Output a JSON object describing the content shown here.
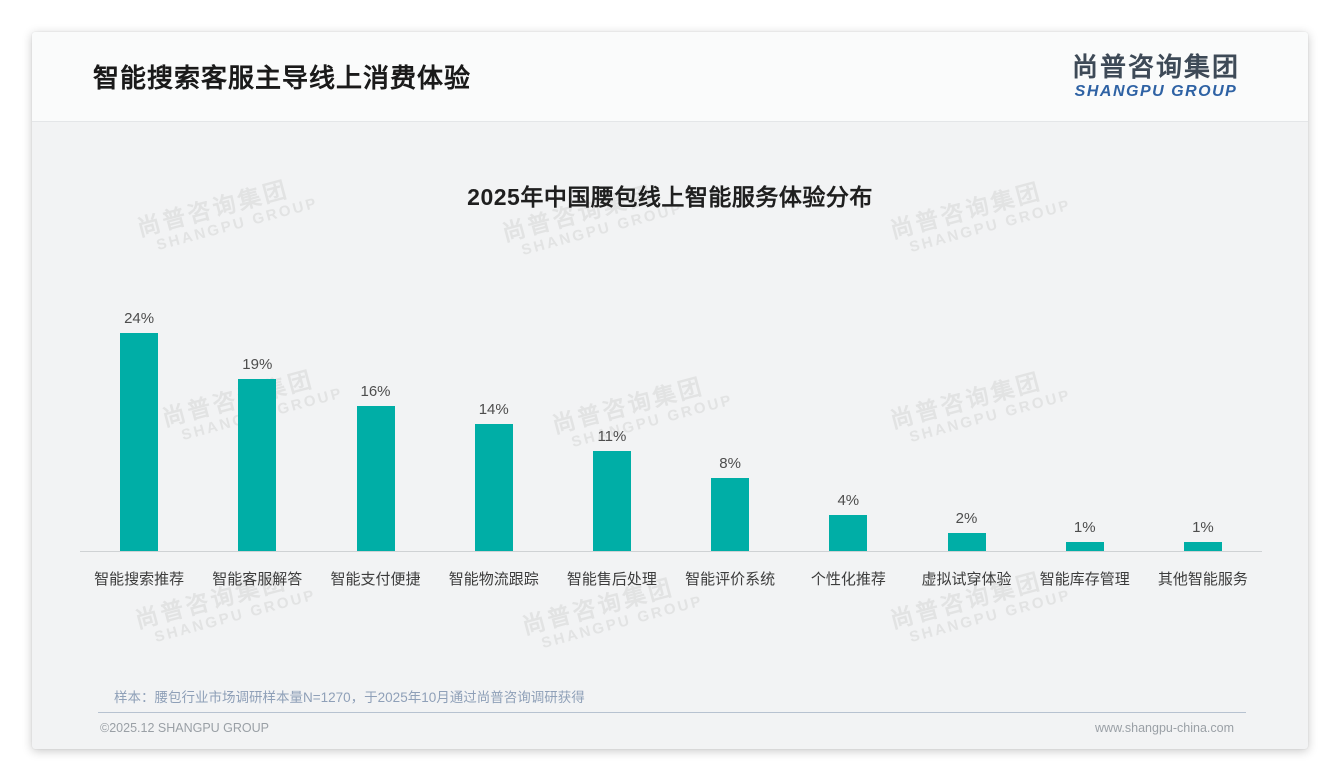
{
  "page": {
    "title": "智能搜索客服主导线上消费体验",
    "logo": {
      "cn": "尚普咨询集团",
      "en": "SHANGPU GROUP"
    },
    "watermark": {
      "cn": "尚普咨询集团",
      "en": "SHANGPU GROUP"
    },
    "sample_note": "样本：腰包行业市场调研样本量N=1270，于2025年10月通过尚普咨询调研获得",
    "footer_left": "©2025.12 SHANGPU GROUP",
    "footer_right": "www.shangpu-china.com"
  },
  "chart_data": {
    "type": "bar",
    "title": "2025年中国腰包线上智能服务体验分布",
    "categories": [
      "智能搜索推荐",
      "智能客服解答",
      "智能支付便捷",
      "智能物流跟踪",
      "智能售后处理",
      "智能评价系统",
      "个性化推荐",
      "虚拟试穿体验",
      "智能库存管理",
      "其他智能服务"
    ],
    "values": [
      24,
      19,
      16,
      14,
      11,
      8,
      4,
      2,
      1,
      1
    ],
    "unit": "%",
    "value_labels": [
      "24%",
      "19%",
      "16%",
      "14%",
      "11%",
      "8%",
      "4%",
      "2%",
      "1%",
      "1%"
    ],
    "bar_color": "#00aea6",
    "ylim": [
      0,
      26
    ],
    "grid": false,
    "legend": false,
    "xlabel": "",
    "ylabel": ""
  },
  "colors": {
    "bar": "#00aea6",
    "logo_blue": "#2e62a4",
    "logo_dark": "#3e4a57",
    "card_bg": "#f2f3f4",
    "note_text": "#8fa0b8"
  }
}
